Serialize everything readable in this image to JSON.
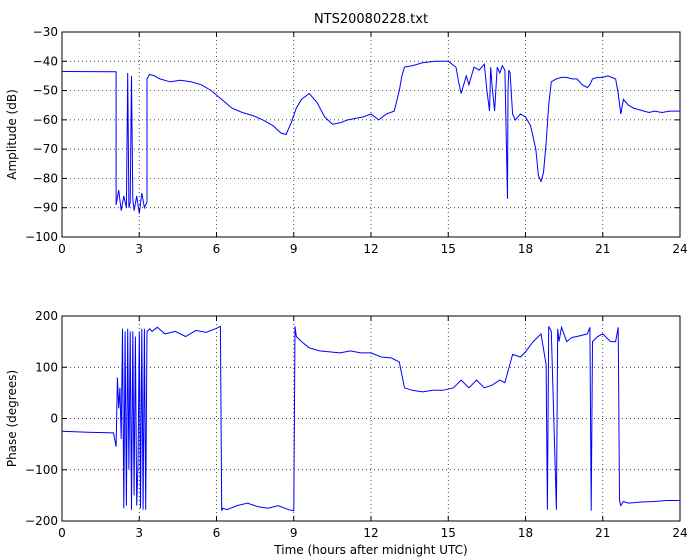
{
  "chart_data": [
    {
      "type": "line",
      "title": "NTS20080228.txt",
      "xlabel": "",
      "ylabel": "Amplitude (dB)",
      "xlim": [
        0,
        24
      ],
      "ylim": [
        -100,
        -30
      ],
      "xticks": [
        0,
        3,
        6,
        9,
        12,
        15,
        18,
        21,
        24
      ],
      "yticks": [
        -100,
        -90,
        -80,
        -70,
        -60,
        -50,
        -40,
        -30
      ],
      "grid": true,
      "color": "#0000ff",
      "series": [
        {
          "x": [
            0,
            2.1,
            2.1,
            2.2,
            2.3,
            2.4,
            2.5,
            2.55,
            2.6,
            2.65,
            2.7,
            2.75,
            2.8,
            2.9,
            3.0,
            3.1,
            3.2,
            3.3,
            3.3,
            3.4,
            3.6,
            3.8,
            4.2,
            4.6,
            5.0,
            5.4,
            5.8,
            6.2,
            6.6,
            7.0,
            7.4,
            7.8,
            8.2,
            8.5,
            8.7,
            8.9,
            9.1,
            9.3,
            9.6,
            9.9,
            10.2,
            10.5,
            10.8,
            11.1,
            11.4,
            11.7,
            12.0,
            12.3,
            12.6,
            12.9,
            13.1,
            13.2,
            13.3,
            13.6,
            14.0,
            14.5,
            15.0,
            15.3,
            15.4,
            15.5,
            15.6,
            15.7,
            15.8,
            16.0,
            16.2,
            16.4,
            16.5,
            16.6,
            16.65,
            16.7,
            16.8,
            16.9,
            17.0,
            17.1,
            17.2,
            17.3,
            17.32,
            17.35,
            17.4,
            17.5,
            17.6,
            17.8,
            18.0,
            18.2,
            18.4,
            18.5,
            18.6,
            18.7,
            18.8,
            18.9,
            19.0,
            19.2,
            19.4,
            19.6,
            19.8,
            20.0,
            20.2,
            20.4,
            20.5,
            20.6,
            20.8,
            21.0,
            21.2,
            21.5,
            21.6,
            21.7,
            21.8,
            22.0,
            22.2,
            22.4,
            22.6,
            22.8,
            23.0,
            23.3,
            23.6,
            24.0
          ],
          "y": [
            -43.5,
            -43.6,
            -89,
            -84,
            -91,
            -86,
            -90,
            -44,
            -90,
            -88,
            -45,
            -87,
            -91,
            -86,
            -92,
            -85,
            -90,
            -88,
            -46,
            -44.5,
            -45,
            -46,
            -47,
            -46.5,
            -47,
            -48,
            -50,
            -53,
            -56,
            -57.5,
            -58.5,
            -60,
            -62,
            -64.5,
            -65,
            -61,
            -56,
            -53,
            -51,
            -54,
            -59,
            -61.5,
            -61,
            -60,
            -59.5,
            -59,
            -58,
            -60,
            -58,
            -57,
            -50,
            -45,
            -42,
            -41.5,
            -40.5,
            -40,
            -40,
            -42,
            -47,
            -51,
            -48,
            -45,
            -48,
            -42,
            -43,
            -41,
            -50,
            -57,
            -42,
            -48,
            -57,
            -42,
            -44,
            -41.5,
            -43,
            -87,
            -50,
            -43,
            -44,
            -58,
            -60,
            -58,
            -59,
            -62,
            -70,
            -79,
            -81,
            -78,
            -68,
            -55,
            -47,
            -46,
            -45.5,
            -45.5,
            -46,
            -46,
            -48,
            -49,
            -48,
            -46,
            -45.5,
            -45.5,
            -45,
            -46,
            -51,
            -58,
            -53,
            -55,
            -56,
            -56.5,
            -57,
            -57.5,
            -57,
            -57.5,
            -57,
            -57
          ]
        }
      ]
    },
    {
      "type": "line",
      "title": "",
      "xlabel": "Time (hours after midnight UTC)",
      "ylabel": "Phase (degrees)",
      "xlim": [
        0,
        24
      ],
      "ylim": [
        -200,
        200
      ],
      "xticks": [
        0,
        3,
        6,
        9,
        12,
        15,
        18,
        21,
        24
      ],
      "yticks": [
        -200,
        -100,
        0,
        100,
        200
      ],
      "grid": true,
      "color": "#0000ff",
      "series": [
        {
          "x": [
            0,
            1.0,
            2.0,
            2.1,
            2.15,
            2.2,
            2.25,
            2.3,
            2.35,
            2.4,
            2.45,
            2.5,
            2.55,
            2.6,
            2.65,
            2.7,
            2.75,
            2.8,
            2.85,
            2.9,
            2.95,
            3.0,
            3.05,
            3.1,
            3.15,
            3.2,
            3.25,
            3.3,
            3.35,
            3.4,
            3.5,
            3.7,
            4.0,
            4.4,
            4.8,
            5.2,
            5.6,
            6.0,
            6.15,
            6.2,
            6.25,
            6.4,
            6.8,
            7.2,
            7.6,
            8.0,
            8.4,
            8.8,
            9.0,
            9.05,
            9.1,
            9.3,
            9.6,
            10.0,
            10.4,
            10.8,
            11.2,
            11.6,
            12.0,
            12.4,
            12.8,
            13.1,
            13.3,
            13.6,
            14.0,
            14.4,
            14.8,
            15.2,
            15.5,
            15.8,
            16.1,
            16.4,
            16.7,
            17.0,
            17.2,
            17.5,
            17.8,
            18.0,
            18.3,
            18.6,
            18.8,
            18.85,
            18.9,
            19.0,
            19.2,
            19.25,
            19.3,
            19.4,
            19.6,
            19.8,
            20.0,
            20.4,
            20.5,
            20.55,
            20.6,
            20.8,
            21.0,
            21.3,
            21.5,
            21.6,
            21.65,
            21.7,
            21.8,
            22.0,
            22.5,
            23.0,
            23.5,
            24.0
          ],
          "y": [
            -25,
            -27,
            -28,
            -55,
            80,
            20,
            60,
            -40,
            175,
            -175,
            170,
            -170,
            175,
            -100,
            170,
            -178,
            170,
            -150,
            160,
            -170,
            -90,
            170,
            -175,
            175,
            -178,
            175,
            -178,
            170,
            172,
            175,
            170,
            178,
            165,
            170,
            160,
            172,
            168,
            176,
            180,
            -180,
            -175,
            -178,
            -170,
            -165,
            -172,
            -175,
            -170,
            -178,
            -180,
            180,
            160,
            150,
            138,
            132,
            130,
            128,
            132,
            128,
            128,
            120,
            118,
            110,
            60,
            55,
            52,
            55,
            55,
            60,
            75,
            60,
            75,
            60,
            65,
            75,
            70,
            125,
            120,
            130,
            150,
            165,
            105,
            -178,
            180,
            170,
            -178,
            175,
            150,
            178,
            150,
            158,
            160,
            165,
            178,
            -180,
            150,
            160,
            165,
            150,
            150,
            178,
            -160,
            -170,
            -162,
            -165,
            -163,
            -162,
            -160,
            -160
          ]
        }
      ]
    }
  ]
}
